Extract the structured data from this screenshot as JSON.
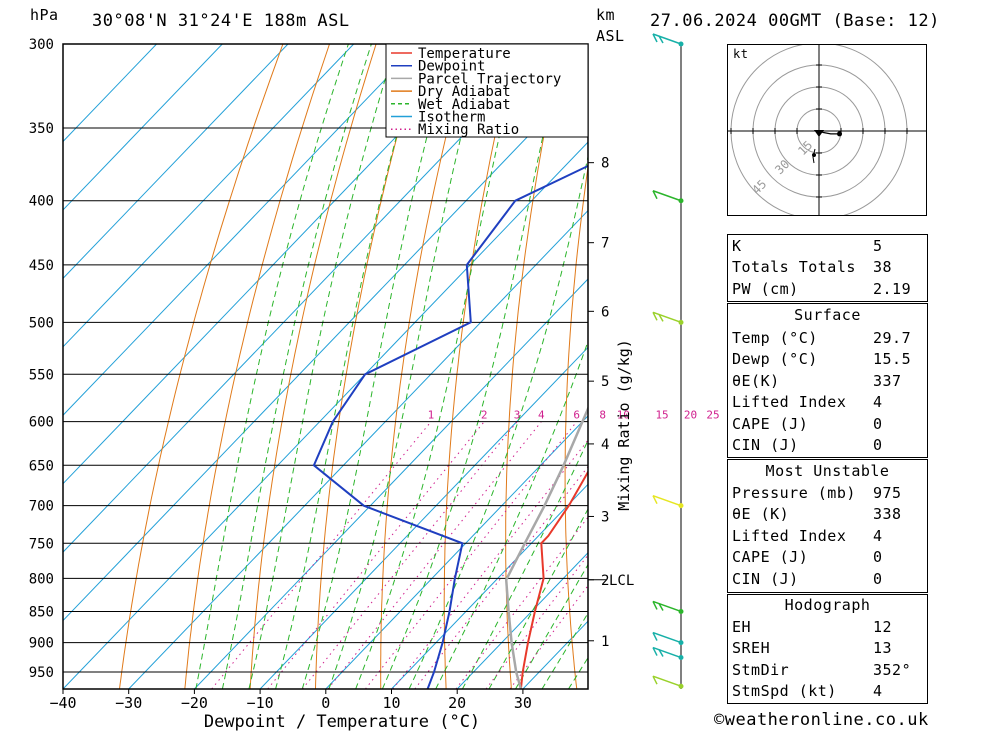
{
  "header": {
    "pressure_unit": "hPa",
    "location": "30°08'N  31°24'E  188m  ASL",
    "km_unit": "km",
    "asl": "ASL",
    "datetime": "27.06.2024  00GMT  (Base: 12)"
  },
  "chart_data": {
    "type": "line",
    "xlabel": "Dewpoint / Temperature (°C)",
    "ylabel": "hPa",
    "right_axis_label": "Mixing Ratio (g/kg)",
    "x_ticks": [
      -40,
      -30,
      -20,
      -10,
      0,
      10,
      20,
      30
    ],
    "y_ticks": [
      300,
      350,
      400,
      450,
      500,
      550,
      600,
      650,
      700,
      750,
      800,
      850,
      900,
      950
    ],
    "ylim": [
      300,
      980
    ],
    "xlim": [
      -40,
      40
    ],
    "log_pressure": true,
    "skew": true,
    "km_ticks": [
      {
        "km": 8,
        "p": 373
      },
      {
        "km": 7,
        "p": 432
      },
      {
        "km": 6,
        "p": 490
      },
      {
        "km": 5,
        "p": 557
      },
      {
        "km": 4,
        "p": 625
      },
      {
        "km": 3,
        "p": 714
      },
      {
        "km": 2,
        "p": 802
      },
      {
        "km": 1,
        "p": 897
      }
    ],
    "lcl": {
      "label": "LCL",
      "p": 802
    },
    "mixing_ratio_labels": [
      {
        "label": "1",
        "w": 1
      },
      {
        "label": "2",
        "w": 2
      },
      {
        "label": "3",
        "w": 3
      },
      {
        "label": "4",
        "w": 4
      },
      {
        "label": "6",
        "w": 6
      },
      {
        "label": "8",
        "w": 8
      },
      {
        "label": "10",
        "w": 10
      },
      {
        "label": "15",
        "w": 15
      },
      {
        "label": "20",
        "w": 20
      },
      {
        "label": "25",
        "w": 25
      }
    ],
    "legend": [
      {
        "name": "Temperature",
        "color": "#e8392b",
        "style": "solid"
      },
      {
        "name": "Dewpoint",
        "color": "#1f3fc0",
        "style": "solid"
      },
      {
        "name": "Parcel Trajectory",
        "color": "#a8a8a8",
        "style": "solid"
      },
      {
        "name": "Dry Adiabat",
        "color": "#e07a1a",
        "style": "solid"
      },
      {
        "name": "Wet Adiabat",
        "color": "#2bb52b",
        "style": "dashed"
      },
      {
        "name": "Isotherm",
        "color": "#22a0d8",
        "style": "solid"
      },
      {
        "name": "Mixing Ratio",
        "color": "#d0208e",
        "style": "dotted"
      }
    ],
    "series": [
      {
        "name": "Temperature",
        "color": "#e8392b",
        "points": [
          {
            "p": 980,
            "t": 29.7
          },
          {
            "p": 950,
            "t": 27.5
          },
          {
            "p": 900,
            "t": 24.0
          },
          {
            "p": 850,
            "t": 20.5
          },
          {
            "p": 800,
            "t": 17.0
          },
          {
            "p": 750,
            "t": 11.5
          },
          {
            "p": 740,
            "t": 11.5
          },
          {
            "p": 700,
            "t": 10.2
          },
          {
            "p": 650,
            "t": 7.8
          },
          {
            "p": 600,
            "t": 4.5
          },
          {
            "p": 550,
            "t": 0.2
          },
          {
            "p": 500,
            "t": -4.8
          },
          {
            "p": 490,
            "t": -5.5
          },
          {
            "p": 450,
            "t": -10.5
          },
          {
            "p": 400,
            "t": -16.2
          },
          {
            "p": 360,
            "t": -22.5
          }
        ]
      },
      {
        "name": "Dewpoint",
        "color": "#1f3fc0",
        "points": [
          {
            "p": 980,
            "t": 15.5
          },
          {
            "p": 950,
            "t": 14.0
          },
          {
            "p": 900,
            "t": 11.0
          },
          {
            "p": 850,
            "t": 7.5
          },
          {
            "p": 800,
            "t": 3.5
          },
          {
            "p": 750,
            "t": -0.5
          },
          {
            "p": 700,
            "t": -21.0
          },
          {
            "p": 650,
            "t": -34.5
          },
          {
            "p": 600,
            "t": -38.0
          },
          {
            "p": 550,
            "t": -40.0
          },
          {
            "p": 500,
            "t": -31.5
          },
          {
            "p": 450,
            "t": -40.5
          },
          {
            "p": 400,
            "t": -42.5
          },
          {
            "p": 350,
            "t": -30.0
          },
          {
            "p": 300,
            "t": -27.0
          }
        ]
      },
      {
        "name": "Parcel Trajectory",
        "color": "#a8a8a8",
        "points": [
          {
            "p": 980,
            "t": 29.7
          },
          {
            "p": 950,
            "t": 26.5
          },
          {
            "p": 900,
            "t": 21.5
          },
          {
            "p": 850,
            "t": 16.5
          },
          {
            "p": 802,
            "t": 11.5
          },
          {
            "p": 750,
            "t": 9.0
          },
          {
            "p": 700,
            "t": 6.5
          },
          {
            "p": 650,
            "t": 3.5
          },
          {
            "p": 600,
            "t": 0.0
          },
          {
            "p": 550,
            "t": -3.8
          },
          {
            "p": 500,
            "t": -8.2
          },
          {
            "p": 450,
            "t": -13.8
          },
          {
            "p": 400,
            "t": -20.0
          },
          {
            "p": 350,
            "t": -27.5
          },
          {
            "p": 300,
            "t": -36.0
          }
        ]
      }
    ],
    "wind_barbs": [
      {
        "p": 300,
        "color": "#17b0a8"
      },
      {
        "p": 400,
        "color": "#2bb52b"
      },
      {
        "p": 500,
        "color": "#9ad12b"
      },
      {
        "p": 700,
        "color": "#e6e622"
      },
      {
        "p": 850,
        "color": "#2bb52b"
      },
      {
        "p": 900,
        "color": "#17b0a8"
      },
      {
        "p": 925,
        "color": "#17b0a8"
      },
      {
        "p": 975,
        "color": "#9ad12b"
      }
    ]
  },
  "hodograph": {
    "unit": "kt",
    "ring_labels": [
      "15",
      "30",
      "45"
    ],
    "points_kt": [
      [
        1,
        0
      ],
      [
        0,
        0
      ],
      [
        3,
        -1
      ],
      [
        8,
        -2
      ],
      [
        14,
        -2
      ]
    ]
  },
  "indices": {
    "rows": [
      {
        "label": "K",
        "value": "5"
      },
      {
        "label": "Totals Totals",
        "value": "38"
      },
      {
        "label": "PW (cm)",
        "value": "2.19"
      }
    ]
  },
  "surface": {
    "title": "Surface",
    "rows": [
      {
        "label": "Temp (°C)",
        "value": "29.7"
      },
      {
        "label": "Dewp (°C)",
        "value": "15.5"
      },
      {
        "label": "θE(K)",
        "value": "337"
      },
      {
        "label": "Lifted Index",
        "value": "4"
      },
      {
        "label": "CAPE (J)",
        "value": "0"
      },
      {
        "label": "CIN (J)",
        "value": "0"
      }
    ]
  },
  "most_unstable": {
    "title": "Most Unstable",
    "rows": [
      {
        "label": "Pressure (mb)",
        "value": "975"
      },
      {
        "label": "θE (K)",
        "value": "338"
      },
      {
        "label": "Lifted Index",
        "value": "4"
      },
      {
        "label": "CAPE (J)",
        "value": "0"
      },
      {
        "label": "CIN (J)",
        "value": "0"
      }
    ]
  },
  "hodograph_stats": {
    "title": "Hodograph",
    "rows": [
      {
        "label": "EH",
        "value": "12"
      },
      {
        "label": "SREH",
        "value": "13"
      },
      {
        "label": "StmDir",
        "value": "352°"
      },
      {
        "label": "StmSpd (kt)",
        "value": "4"
      }
    ]
  },
  "footer": {
    "copyright": "©weatheronline.co.uk"
  }
}
